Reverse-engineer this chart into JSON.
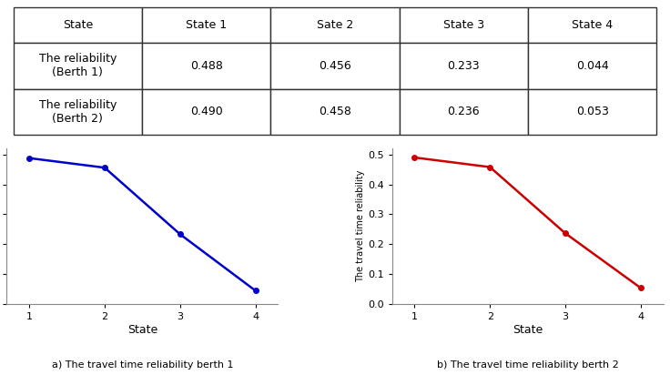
{
  "table_headers": [
    "State",
    "State 1",
    "Sate 2",
    "State 3",
    "State 4"
  ],
  "table_rows": [
    [
      "The reliability\n(Berth 1)",
      "0.488",
      "0.456",
      "0.233",
      "0.044"
    ],
    [
      "The reliability\n(Berth 2)",
      "0.490",
      "0.458",
      "0.236",
      "0.053"
    ]
  ],
  "berth1_values": [
    0.488,
    0.456,
    0.233,
    0.044
  ],
  "berth2_values": [
    0.49,
    0.458,
    0.236,
    0.053
  ],
  "states": [
    1,
    2,
    3,
    4
  ],
  "plot1_color": "#0000CC",
  "plot2_color": "#CC0000",
  "xlabel": "State",
  "ylabel": "The travel time reliability",
  "caption1": "a) The travel time reliability berth 1",
  "caption2": "b) The travel time reliability berth 2",
  "ylim": [
    0,
    0.52
  ],
  "yticks": [
    0,
    0.1,
    0.2,
    0.3,
    0.4,
    0.5
  ],
  "xticks": [
    1,
    2,
    3,
    4
  ],
  "bg_color": "#ffffff"
}
